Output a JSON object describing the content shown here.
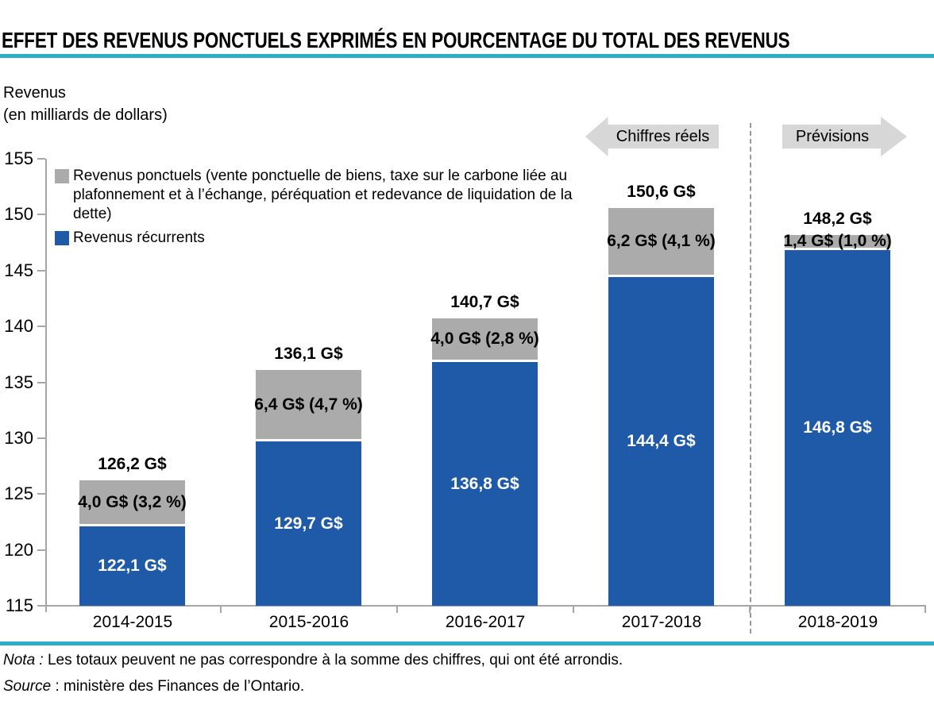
{
  "chart_data": {
    "type": "bar",
    "stacked": true,
    "title": "EFFET DES REVENUS PONCTUELS EXPRIMÉS EN POURCENTAGE DU TOTAL DES REVENUS",
    "ylabel_line1": "Revenus",
    "ylabel_line2": "(en milliards de dollars)",
    "xlabel": "",
    "ylim": [
      115,
      155
    ],
    "yticks": [
      "115",
      "120",
      "125",
      "130",
      "135",
      "140",
      "145",
      "150",
      "155"
    ],
    "grid": false,
    "legend_position": "top-left-inside-plot",
    "categories": [
      "2014-2015",
      "2015-2016",
      "2016-2017",
      "2017-2018",
      "2018-2019"
    ],
    "series": [
      {
        "name": "Revenus récurrents",
        "color": "#1E5AA8",
        "label_color": "#FFFFFF",
        "values": [
          122.1,
          129.7,
          136.8,
          144.4,
          146.8
        ],
        "labels": [
          "122,1 G$",
          "129,7 G$",
          "136,8 G$",
          "144,4 G$",
          "146,8 G$"
        ]
      },
      {
        "name": "Revenus ponctuels",
        "color": "#ABABAB",
        "label_color": "#000000",
        "values": [
          4.0,
          6.4,
          4.0,
          6.2,
          1.4
        ],
        "labels": [
          "4,0 G$ (3,2 %)",
          "6,4 G$ (4,7 %)",
          "4,0 G$ (2,8 %)",
          "6,2 G$ (4,1 %)",
          "1,4 G$ (1,0 %)"
        ]
      }
    ],
    "totals": {
      "values": [
        126.2,
        136.1,
        140.7,
        150.6,
        148.2
      ],
      "labels": [
        "126,2 G$",
        "136,1 G$",
        "140,7 G$",
        "150,6 G$",
        "148,2 G$"
      ]
    },
    "annotations": {
      "actuals": "Chiffres réels",
      "forecast": "Prévisions",
      "separator_after_category": "2017-2018"
    }
  },
  "legend": {
    "items": [
      {
        "label": "Revenus ponctuels (vente ponctuelle de biens, taxe sur le carbone liée au plafonnement et à l’échange, péréquation et redevance de liquidation de la dette)",
        "color": "#ABABAB"
      },
      {
        "label": "Revenus récurrents",
        "color": "#1E5AA8"
      }
    ]
  },
  "notes": {
    "nota_label": "Nota :",
    "nota_text": " Les totaux peuvent ne pas correspondre à la somme des chiffres, qui ont été arrondis.",
    "source_label": "Source",
    "source_text": " : ministère des Finances de l’Ontario."
  },
  "colors": {
    "accent_teal": "#2BAFC8",
    "bar_blue": "#1E5AA8",
    "bar_gray": "#ABABAB",
    "arrow_gray": "#D7D7D7",
    "axis_gray": "#A6A6A6",
    "separator_gray": "#999999"
  }
}
